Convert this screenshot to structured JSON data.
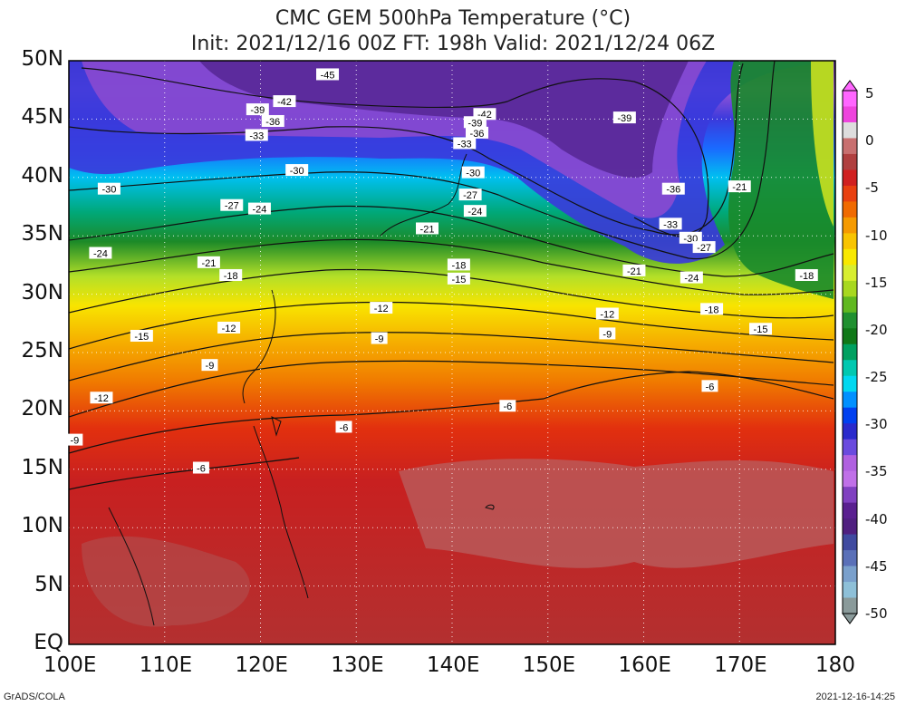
{
  "title": {
    "line1": "CMC GEM 500hPa Temperature (°C)",
    "line2": "Init: 2021/12/16 00Z  FT: 198h  Valid: 2021/12/24 06Z"
  },
  "map": {
    "lat_ticks": [
      "50N",
      "45N",
      "40N",
      "35N",
      "30N",
      "25N",
      "20N",
      "15N",
      "10N",
      "5N",
      "EQ"
    ],
    "lon_ticks": [
      "100E",
      "110E",
      "120E",
      "130E",
      "140E",
      "150E",
      "160E",
      "170E",
      "180"
    ],
    "lon_range": [
      100,
      180
    ],
    "lat_range": [
      0,
      50
    ],
    "gridlines": "dotted"
  },
  "colorbar": {
    "labels": [
      "5",
      "0",
      "-5",
      "-10",
      "-15",
      "-20",
      "-25",
      "-30",
      "-35",
      "-40",
      "-45",
      "-50"
    ],
    "range": [
      -50,
      5
    ],
    "colors": [
      "#ff66ff",
      "#ee44dd",
      "#dddddd",
      "#c87070",
      "#b04040",
      "#d02020",
      "#e84010",
      "#f06a00",
      "#f59a00",
      "#f8c400",
      "#f8e800",
      "#d8ee30",
      "#a8d820",
      "#60b820",
      "#209030",
      "#107818",
      "#00a060",
      "#00c8b0",
      "#00d8f0",
      "#0090ff",
      "#0040f0",
      "#2a2acc",
      "#6a4ade",
      "#b060e0",
      "#c070e8",
      "#8040c0",
      "#5a2090",
      "#502080",
      "#404aa0",
      "#5a70b8",
      "#7aa0cc",
      "#8ec0d8",
      "#8a9a9a"
    ]
  },
  "contours": [
    {
      "label": "-45",
      "lon": 127.0,
      "lat": 48.8
    },
    {
      "label": "-42",
      "lon": 122.5,
      "lat": 46.5
    },
    {
      "label": "-39",
      "lon": 119.7,
      "lat": 45.8
    },
    {
      "label": "-36",
      "lon": 121.3,
      "lat": 44.8
    },
    {
      "label": "-33",
      "lon": 119.6,
      "lat": 43.6
    },
    {
      "label": "-42",
      "lon": 143.4,
      "lat": 45.4
    },
    {
      "label": "-39",
      "lon": 142.4,
      "lat": 44.7
    },
    {
      "label": "-36",
      "lon": 142.6,
      "lat": 43.8
    },
    {
      "label": "-39",
      "lon": 158.0,
      "lat": 45.1
    },
    {
      "label": "-33",
      "lon": 141.3,
      "lat": 42.9
    },
    {
      "label": "-30",
      "lon": 123.8,
      "lat": 40.6
    },
    {
      "label": "-30",
      "lon": 142.2,
      "lat": 40.4
    },
    {
      "label": "-30",
      "lon": 104.2,
      "lat": 39.0
    },
    {
      "label": "-36",
      "lon": 163.1,
      "lat": 39.0
    },
    {
      "label": "-21",
      "lon": 170.0,
      "lat": 39.2
    },
    {
      "label": "-27",
      "lon": 141.9,
      "lat": 38.5
    },
    {
      "label": "-27",
      "lon": 117.0,
      "lat": 37.6
    },
    {
      "label": "-24",
      "lon": 119.9,
      "lat": 37.3
    },
    {
      "label": "-24",
      "lon": 142.4,
      "lat": 37.1
    },
    {
      "label": "-21",
      "lon": 137.4,
      "lat": 35.6
    },
    {
      "label": "-33",
      "lon": 162.8,
      "lat": 36.0
    },
    {
      "label": "-30",
      "lon": 164.9,
      "lat": 34.8
    },
    {
      "label": "-27",
      "lon": 166.3,
      "lat": 34.0
    },
    {
      "label": "-24",
      "lon": 103.3,
      "lat": 33.5
    },
    {
      "label": "-21",
      "lon": 114.6,
      "lat": 32.7
    },
    {
      "label": "-18",
      "lon": 140.7,
      "lat": 32.5
    },
    {
      "label": "-18",
      "lon": 116.9,
      "lat": 31.6
    },
    {
      "label": "-15",
      "lon": 140.7,
      "lat": 31.3
    },
    {
      "label": "-21",
      "lon": 159.0,
      "lat": 32.0
    },
    {
      "label": "-24",
      "lon": 165.0,
      "lat": 31.4
    },
    {
      "label": "-18",
      "lon": 177.0,
      "lat": 31.6
    },
    {
      "label": "-12",
      "lon": 132.6,
      "lat": 28.8
    },
    {
      "label": "-12",
      "lon": 156.2,
      "lat": 28.3
    },
    {
      "label": "-18",
      "lon": 167.1,
      "lat": 28.7
    },
    {
      "label": "-15",
      "lon": 172.2,
      "lat": 27.0
    },
    {
      "label": "-12",
      "lon": 116.7,
      "lat": 27.1
    },
    {
      "label": "-15",
      "lon": 107.6,
      "lat": 26.4
    },
    {
      "label": "-9",
      "lon": 132.4,
      "lat": 26.2
    },
    {
      "label": "-9",
      "lon": 156.2,
      "lat": 26.6
    },
    {
      "label": "-9",
      "lon": 114.7,
      "lat": 23.9
    },
    {
      "label": "-6",
      "lon": 166.9,
      "lat": 22.1
    },
    {
      "label": "-12",
      "lon": 103.4,
      "lat": 21.1
    },
    {
      "label": "-6",
      "lon": 145.8,
      "lat": 20.4
    },
    {
      "label": "-6",
      "lon": 128.7,
      "lat": 18.6
    },
    {
      "label": "-9",
      "lon": 100.6,
      "lat": 17.5
    },
    {
      "label": "-6",
      "lon": 113.8,
      "lat": 15.1
    }
  ],
  "footer": {
    "left": "GrADS/COLA",
    "right": "2021-12-16-14:25"
  }
}
